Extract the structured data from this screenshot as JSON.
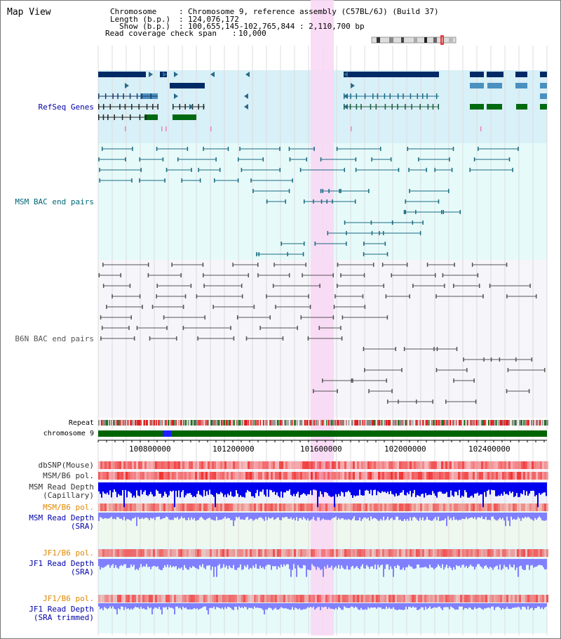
{
  "header": {
    "title": "Map View",
    "chromosome_label": "Chromosome",
    "chromosome_value": "Chromosome 9, reference assembly (C57BL/6J) (Build 37)",
    "length_label": "Length (b.p.)",
    "length_value": "124,076,172",
    "show_label": "Show (b.p.)",
    "show_value": "100,655,145-102,765,844 : 2,110,700 bp",
    "coverage_label": "Read coverage check span",
    "coverage_value": "10,000"
  },
  "tracks": {
    "refseq": {
      "label": "RefSeq Genes",
      "color": "#0000aa"
    },
    "msm_bac": {
      "label": "MSM BAC end pairs",
      "color": "#006677"
    },
    "b6n_bac": {
      "label": "B6N BAC end pairs",
      "color": "#555555"
    },
    "repeat": {
      "label": "Repeat"
    },
    "chromosome": {
      "label": "chromosome 9"
    },
    "dbsnp": {
      "label": "dbSNP(Mouse)"
    },
    "msm_b6_pol": {
      "label": "MSM/B6 pol."
    },
    "msm_read_depth_cap": {
      "label1": "MSM Read Depth",
      "label2": "(Capillary)"
    },
    "msm_b6_pol2": {
      "label": "MSM/B6 pol."
    },
    "msm_read_depth_sra": {
      "label1": "MSM Read Depth",
      "label2": "(SRA)"
    },
    "jf1_b6_pol": {
      "label": "JF1/B6 pol."
    },
    "jf1_read_depth_sra": {
      "label1": "JF1 Read Depth",
      "label2": "(SRA)"
    },
    "jf1_b6_pol2": {
      "label": "JF1/B6 pol."
    },
    "jf1_read_depth_trim": {
      "label1": "JF1 Read Depth",
      "label2": "(SRA trimmed)"
    }
  },
  "axis": {
    "ticks": [
      "100800000",
      "101200000",
      "101600000",
      "102000000",
      "102400000"
    ]
  },
  "colors": {
    "refseq_bg": "#d8f0f8",
    "msm_bg": "#e6fafa",
    "b6n_bg": "#f5f5fa",
    "highlight": "#f8d8f4",
    "gene_dark": "#002a66",
    "gene_mid": "#4a90c0",
    "gene_green": "#006a12",
    "chromosome_bar": "#006400",
    "depth_blue": "#0000ee",
    "depth_light": "#8080ff",
    "orange_label": "#e08800"
  }
}
